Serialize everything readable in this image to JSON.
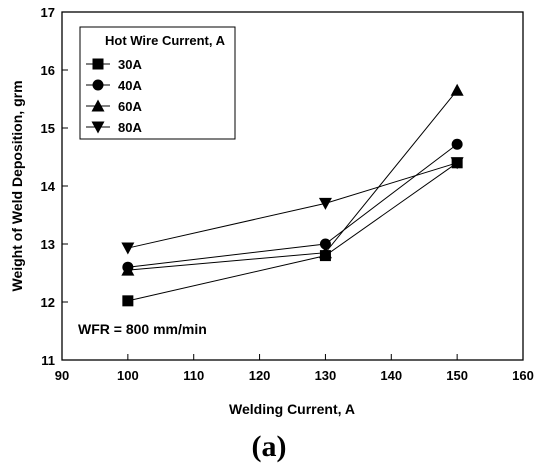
{
  "chart_data": {
    "type": "line",
    "title": "",
    "xlabel": "Welding Current, A",
    "ylabel": "Weight of Weld Deposition, grm",
    "xlim": [
      90,
      160
    ],
    "ylim": [
      11,
      17
    ],
    "xticks": [
      90,
      100,
      110,
      120,
      130,
      140,
      150,
      160
    ],
    "yticks": [
      11,
      12,
      13,
      14,
      15,
      16,
      17
    ],
    "x": [
      100,
      130,
      150
    ],
    "legend_title": "Hot Wire Current, A",
    "legend_position": "top-left",
    "grid": false,
    "series": [
      {
        "name": "30A",
        "marker": "square",
        "values": [
          12.02,
          12.8,
          14.4
        ]
      },
      {
        "name": "40A",
        "marker": "circle",
        "values": [
          12.6,
          13.0,
          14.72
        ]
      },
      {
        "name": "60A",
        "marker": "triangle-up",
        "values": [
          12.55,
          12.85,
          15.65
        ]
      },
      {
        "name": "80A",
        "marker": "triangle-down",
        "values": [
          12.93,
          13.7,
          14.4
        ]
      }
    ],
    "annotation": "WFR = 800 mm/min"
  },
  "caption": "(a)"
}
